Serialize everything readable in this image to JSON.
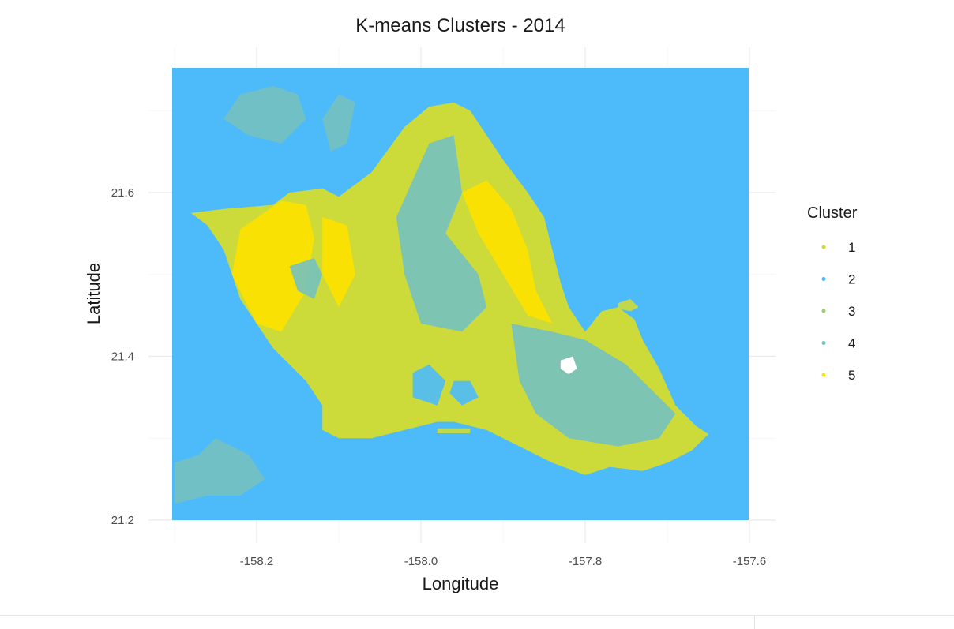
{
  "chart_data": {
    "type": "scatter",
    "title": "K-means Clusters - 2014",
    "xlabel": "Longitude",
    "ylabel": "Latitude",
    "xlim": [
      -158.3,
      -157.6
    ],
    "ylim": [
      21.2,
      21.75
    ],
    "x_ticks": [
      -158.2,
      -158.0,
      -157.8,
      -157.6
    ],
    "y_ticks": [
      21.2,
      21.4,
      21.6
    ],
    "x_tick_labels": [
      "-158.2",
      "-158.0",
      "-157.8",
      "-157.6"
    ],
    "y_tick_labels": [
      "21.2",
      "21.4",
      "21.6"
    ],
    "grid": true,
    "legend": {
      "title": "Cluster",
      "placement": "right",
      "entries": [
        {
          "label": "1",
          "color": "#CDDB3A"
        },
        {
          "label": "2",
          "color": "#4DBBFA"
        },
        {
          "label": "3",
          "color": "#9CCB6C"
        },
        {
          "label": "4",
          "color": "#76C1C0"
        },
        {
          "label": "5",
          "color": "#FAE200"
        }
      ]
    },
    "background_cluster": "2",
    "island_outline_cluster": "1",
    "island_outline": [
      [
        -158.28,
        21.575
      ],
      [
        -158.24,
        21.58
      ],
      [
        -158.18,
        21.585
      ],
      [
        -158.16,
        21.6
      ],
      [
        -158.12,
        21.605
      ],
      [
        -158.1,
        21.595
      ],
      [
        -158.06,
        21.625
      ],
      [
        -158.02,
        21.68
      ],
      [
        -157.99,
        21.705
      ],
      [
        -157.96,
        21.71
      ],
      [
        -157.94,
        21.7
      ],
      [
        -157.92,
        21.67
      ],
      [
        -157.9,
        21.64
      ],
      [
        -157.87,
        21.6
      ],
      [
        -157.85,
        21.57
      ],
      [
        -157.84,
        21.53
      ],
      [
        -157.83,
        21.49
      ],
      [
        -157.82,
        21.46
      ],
      [
        -157.8,
        21.43
      ],
      [
        -157.78,
        21.455
      ],
      [
        -157.76,
        21.46
      ],
      [
        -157.74,
        21.445
      ],
      [
        -157.73,
        21.42
      ],
      [
        -157.71,
        21.385
      ],
      [
        -157.69,
        21.34
      ],
      [
        -157.665,
        21.315
      ],
      [
        -157.65,
        21.305
      ],
      [
        -157.67,
        21.285
      ],
      [
        -157.7,
        21.27
      ],
      [
        -157.73,
        21.26
      ],
      [
        -157.77,
        21.265
      ],
      [
        -157.8,
        21.255
      ],
      [
        -157.84,
        21.27
      ],
      [
        -157.88,
        21.29
      ],
      [
        -157.92,
        21.31
      ],
      [
        -157.96,
        21.32
      ],
      [
        -157.98,
        21.32
      ],
      [
        -158.02,
        21.31
      ],
      [
        -158.06,
        21.3
      ],
      [
        -158.1,
        21.3
      ],
      [
        -158.12,
        21.31
      ],
      [
        -158.12,
        21.34
      ],
      [
        -158.14,
        21.37
      ],
      [
        -158.16,
        21.39
      ],
      [
        -158.18,
        21.41
      ],
      [
        -158.2,
        21.44
      ],
      [
        -158.22,
        21.47
      ],
      [
        -158.23,
        21.5
      ],
      [
        -158.24,
        21.53
      ],
      [
        -158.26,
        21.56
      ]
    ],
    "regions": [
      {
        "cluster": "5",
        "points": [
          [
            -158.22,
            21.555
          ],
          [
            -158.17,
            21.59
          ],
          [
            -158.14,
            21.585
          ],
          [
            -158.13,
            21.545
          ],
          [
            -158.14,
            21.48
          ],
          [
            -158.17,
            21.43
          ],
          [
            -158.2,
            21.44
          ],
          [
            -158.23,
            21.5
          ]
        ]
      },
      {
        "cluster": "5",
        "points": [
          [
            -158.12,
            21.57
          ],
          [
            -158.09,
            21.56
          ],
          [
            -158.08,
            21.5
          ],
          [
            -158.1,
            21.46
          ],
          [
            -158.12,
            21.5
          ]
        ]
      },
      {
        "cluster": "5",
        "points": [
          [
            -157.95,
            21.6
          ],
          [
            -157.92,
            21.615
          ],
          [
            -157.89,
            21.58
          ],
          [
            -157.87,
            21.53
          ],
          [
            -157.86,
            21.48
          ],
          [
            -157.84,
            21.44
          ],
          [
            -157.87,
            21.45
          ],
          [
            -157.9,
            21.5
          ],
          [
            -157.93,
            21.55
          ]
        ]
      },
      {
        "cluster": "4",
        "points": [
          [
            -157.99,
            21.66
          ],
          [
            -157.96,
            21.67
          ],
          [
            -157.95,
            21.6
          ],
          [
            -157.97,
            21.55
          ],
          [
            -157.93,
            21.5
          ],
          [
            -157.92,
            21.46
          ],
          [
            -157.95,
            21.43
          ],
          [
            -158.0,
            21.44
          ],
          [
            -158.02,
            21.5
          ],
          [
            -158.03,
            21.57
          ]
        ]
      },
      {
        "cluster": "4",
        "points": [
          [
            -157.89,
            21.44
          ],
          [
            -157.84,
            21.43
          ],
          [
            -157.8,
            21.42
          ],
          [
            -157.75,
            21.39
          ],
          [
            -157.72,
            21.36
          ],
          [
            -157.69,
            21.33
          ],
          [
            -157.71,
            21.3
          ],
          [
            -157.76,
            21.29
          ],
          [
            -157.82,
            21.3
          ],
          [
            -157.86,
            21.33
          ],
          [
            -157.88,
            21.37
          ]
        ]
      },
      {
        "cluster": "4",
        "points": [
          [
            -158.13,
            21.52
          ],
          [
            -158.12,
            21.5
          ],
          [
            -158.13,
            21.47
          ],
          [
            -158.15,
            21.48
          ],
          [
            -158.16,
            21.51
          ]
        ]
      },
      {
        "cluster": "4",
        "points": [
          [
            -158.22,
            21.72
          ],
          [
            -158.18,
            21.73
          ],
          [
            -158.15,
            21.72
          ],
          [
            -158.14,
            21.69
          ],
          [
            -158.17,
            21.66
          ],
          [
            -158.21,
            21.67
          ],
          [
            -158.24,
            21.69
          ]
        ]
      },
      {
        "cluster": "4",
        "points": [
          [
            -158.1,
            21.72
          ],
          [
            -158.08,
            21.71
          ],
          [
            -158.09,
            21.66
          ],
          [
            -158.11,
            21.65
          ],
          [
            -158.12,
            21.69
          ]
        ]
      },
      {
        "cluster": "4",
        "points": [
          [
            -158.3,
            21.27
          ],
          [
            -158.27,
            21.28
          ],
          [
            -158.25,
            21.3
          ],
          [
            -158.21,
            21.28
          ],
          [
            -158.19,
            21.25
          ],
          [
            -158.22,
            21.23
          ],
          [
            -158.26,
            21.23
          ],
          [
            -158.3,
            21.22
          ]
        ]
      },
      {
        "cluster": "2",
        "points": [
          [
            -158.01,
            21.38
          ],
          [
            -157.99,
            21.39
          ],
          [
            -157.97,
            21.37
          ],
          [
            -157.98,
            21.34
          ],
          [
            -158.01,
            21.35
          ]
        ]
      },
      {
        "cluster": "2",
        "points": [
          [
            -157.96,
            21.37
          ],
          [
            -157.94,
            21.37
          ],
          [
            -157.93,
            21.35
          ],
          [
            -157.95,
            21.34
          ],
          [
            -157.965,
            21.355
          ]
        ]
      },
      {
        "cluster": "1",
        "points": [
          [
            -157.98,
            21.312
          ],
          [
            -157.94,
            21.312
          ],
          [
            -157.94,
            21.306
          ],
          [
            -157.98,
            21.306
          ]
        ]
      },
      {
        "cluster": "1",
        "points": [
          [
            -157.76,
            21.465
          ],
          [
            -157.745,
            21.47
          ],
          [
            -157.735,
            21.46
          ],
          [
            -157.745,
            21.455
          ],
          [
            -157.76,
            21.458
          ]
        ]
      }
    ],
    "white_gap": [
      [
        -157.83,
        21.395
      ],
      [
        -157.815,
        21.4
      ],
      [
        -157.81,
        21.385
      ],
      [
        -157.82,
        21.378
      ],
      [
        -157.83,
        21.385
      ]
    ]
  }
}
